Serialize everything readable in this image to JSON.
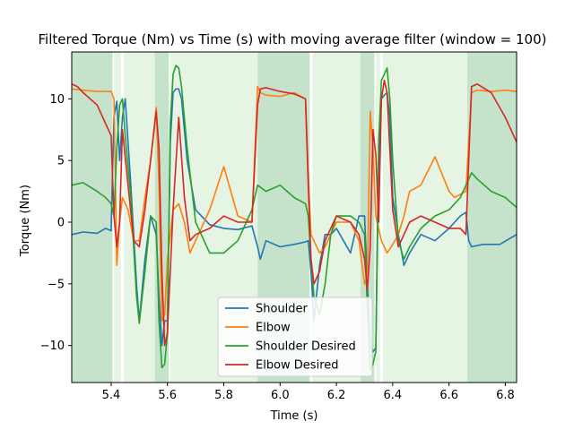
{
  "chart_data": {
    "type": "line",
    "title": "Filtered Torque (Nm) vs Time (s) with moving average filter (window = 100)",
    "xlabel": "Time (s)",
    "ylabel": "Torque (Nm)",
    "xlim": [
      5.26,
      6.84
    ],
    "ylim": [
      -13.0,
      13.8
    ],
    "xticks": [
      5.4,
      5.6,
      5.8,
      6.0,
      6.2,
      6.4,
      6.6,
      6.8
    ],
    "yticks": [
      -10,
      -5,
      0,
      5,
      10
    ],
    "legend_position": "lower center",
    "shaded_regions": [
      {
        "start": 5.26,
        "end": 5.405,
        "shade": "dark"
      },
      {
        "start": 5.41,
        "end": 5.435,
        "shade": "light"
      },
      {
        "start": 5.445,
        "end": 5.555,
        "shade": "light"
      },
      {
        "start": 5.555,
        "end": 5.605,
        "shade": "dark"
      },
      {
        "start": 5.61,
        "end": 5.92,
        "shade": "light"
      },
      {
        "start": 5.92,
        "end": 6.105,
        "shade": "dark"
      },
      {
        "start": 6.115,
        "end": 6.285,
        "shade": "light"
      },
      {
        "start": 6.285,
        "end": 6.335,
        "shade": "dark"
      },
      {
        "start": 6.34,
        "end": 6.355,
        "shade": "light"
      },
      {
        "start": 6.365,
        "end": 6.665,
        "shade": "light"
      },
      {
        "start": 6.665,
        "end": 6.84,
        "shade": "dark"
      }
    ],
    "series": [
      {
        "name": "Shoulder",
        "color": "#1f77b4",
        "x": [
          5.26,
          5.3,
          5.35,
          5.38,
          5.4,
          5.41,
          5.42,
          5.43,
          5.44,
          5.45,
          5.47,
          5.49,
          5.5,
          5.52,
          5.54,
          5.56,
          5.57,
          5.58,
          5.59,
          5.6,
          5.61,
          5.62,
          5.63,
          5.64,
          5.65,
          5.67,
          5.7,
          5.75,
          5.8,
          5.85,
          5.9,
          5.92,
          5.93,
          5.95,
          6.0,
          6.05,
          6.09,
          6.1,
          6.11,
          6.12,
          6.14,
          6.16,
          6.18,
          6.2,
          6.25,
          6.28,
          6.3,
          6.31,
          6.32,
          6.33,
          6.34,
          6.35,
          6.36,
          6.37,
          6.38,
          6.39,
          6.4,
          6.42,
          6.44,
          6.46,
          6.5,
          6.55,
          6.6,
          6.64,
          6.66,
          6.67,
          6.68,
          6.72,
          6.78,
          6.84
        ],
        "y": [
          -1.0,
          -0.8,
          -0.9,
          -0.5,
          -0.7,
          8.5,
          9.8,
          5.0,
          8.5,
          10.0,
          3.0,
          -5.0,
          -8.0,
          -3.0,
          0.5,
          -1.0,
          -6.0,
          -10.0,
          -8.0,
          -8.0,
          6.5,
          10.5,
          10.8,
          10.8,
          10.0,
          5.0,
          1.0,
          -0.2,
          -0.5,
          -0.6,
          -0.3,
          -2.0,
          -3.0,
          -1.5,
          -2.0,
          -1.8,
          -1.6,
          -1.5,
          -4.0,
          -8.0,
          -3.5,
          -1.0,
          -1.0,
          -0.5,
          -2.5,
          0.5,
          0.5,
          -5.0,
          -10.0,
          -10.5,
          -10.2,
          5.0,
          10.0,
          10.3,
          10.5,
          8.5,
          2.0,
          -1.0,
          -3.5,
          -2.5,
          -1.0,
          -1.5,
          -0.5,
          0.5,
          0.8,
          -1.5,
          -2.0,
          -1.8,
          -1.8,
          -1.0
        ]
      },
      {
        "name": "Elbow",
        "color": "#ff7f0e",
        "x": [
          5.26,
          5.3,
          5.35,
          5.4,
          5.41,
          5.42,
          5.43,
          5.44,
          5.46,
          5.48,
          5.5,
          5.52,
          5.54,
          5.56,
          5.57,
          5.58,
          5.59,
          5.6,
          5.62,
          5.64,
          5.66,
          5.68,
          5.7,
          5.75,
          5.8,
          5.85,
          5.9,
          5.92,
          5.93,
          5.95,
          6.0,
          6.05,
          6.09,
          6.1,
          6.11,
          6.12,
          6.14,
          6.16,
          6.2,
          6.25,
          6.28,
          6.3,
          6.31,
          6.32,
          6.33,
          6.34,
          6.36,
          6.38,
          6.4,
          6.42,
          6.44,
          6.46,
          6.5,
          6.55,
          6.6,
          6.62,
          6.66,
          6.68,
          6.7,
          6.75,
          6.8,
          6.84
        ],
        "y": [
          10.8,
          10.7,
          10.6,
          10.6,
          10.0,
          -3.5,
          0.0,
          2.0,
          1.0,
          -1.5,
          -1.5,
          2.0,
          5.0,
          9.3,
          3.0,
          -8.0,
          -7.5,
          -3.0,
          1.0,
          1.5,
          0.0,
          -2.5,
          -1.5,
          1.0,
          4.5,
          0.5,
          0.0,
          11.0,
          10.5,
          10.3,
          10.2,
          10.5,
          10.0,
          4.0,
          -1.0,
          -1.5,
          -2.5,
          -2.0,
          0.0,
          0.0,
          -1.5,
          -5.0,
          -4.5,
          9.0,
          6.0,
          0.5,
          -1.5,
          -2.5,
          -1.8,
          -1.0,
          0.5,
          2.5,
          3.0,
          5.3,
          2.5,
          2.0,
          2.5,
          10.5,
          10.7,
          10.6,
          10.7,
          10.6
        ]
      },
      {
        "name": "Shoulder Desired",
        "color": "#2ca02c",
        "x": [
          5.26,
          5.3,
          5.35,
          5.38,
          5.4,
          5.41,
          5.42,
          5.43,
          5.44,
          5.45,
          5.47,
          5.49,
          5.5,
          5.52,
          5.54,
          5.56,
          5.57,
          5.58,
          5.59,
          5.6,
          5.61,
          5.62,
          5.63,
          5.64,
          5.65,
          5.67,
          5.7,
          5.75,
          5.8,
          5.85,
          5.9,
          5.92,
          5.95,
          6.0,
          6.05,
          6.09,
          6.1,
          6.11,
          6.12,
          6.14,
          6.16,
          6.18,
          6.2,
          6.25,
          6.28,
          6.3,
          6.31,
          6.32,
          6.33,
          6.34,
          6.35,
          6.36,
          6.37,
          6.38,
          6.39,
          6.4,
          6.42,
          6.44,
          6.46,
          6.5,
          6.55,
          6.6,
          6.64,
          6.66,
          6.68,
          6.7,
          6.75,
          6.8,
          6.84
        ],
        "y": [
          3.0,
          3.2,
          2.5,
          2.0,
          1.5,
          0.5,
          6.0,
          9.5,
          10.0,
          7.0,
          2.0,
          -6.0,
          -8.2,
          -4.0,
          0.5,
          0.0,
          -8.0,
          -11.8,
          -11.5,
          -9.0,
          8.0,
          12.0,
          12.7,
          12.5,
          11.0,
          6.0,
          0.0,
          -2.5,
          -2.5,
          -1.5,
          1.0,
          3.0,
          2.5,
          3.0,
          2.0,
          1.5,
          0.5,
          -3.0,
          -6.0,
          -7.5,
          -5.0,
          -1.0,
          0.5,
          0.5,
          0.0,
          -1.0,
          -7.0,
          -12.0,
          -11.5,
          -10.5,
          6.5,
          11.5,
          12.0,
          12.5,
          10.0,
          5.0,
          -1.5,
          -3.0,
          -2.0,
          -0.5,
          0.5,
          1.0,
          2.0,
          3.0,
          4.0,
          3.5,
          2.5,
          2.0,
          1.2
        ]
      },
      {
        "name": "Elbow Desired",
        "color": "#d62728",
        "x": [
          5.26,
          5.28,
          5.3,
          5.35,
          5.38,
          5.4,
          5.41,
          5.42,
          5.43,
          5.44,
          5.46,
          5.48,
          5.5,
          5.52,
          5.54,
          5.56,
          5.57,
          5.58,
          5.59,
          5.6,
          5.62,
          5.64,
          5.66,
          5.68,
          5.7,
          5.75,
          5.8,
          5.85,
          5.9,
          5.92,
          5.93,
          5.95,
          6.0,
          6.05,
          6.09,
          6.1,
          6.11,
          6.12,
          6.14,
          6.16,
          6.2,
          6.25,
          6.28,
          6.3,
          6.31,
          6.32,
          6.33,
          6.34,
          6.35,
          6.36,
          6.37,
          6.38,
          6.4,
          6.42,
          6.44,
          6.46,
          6.5,
          6.55,
          6.6,
          6.64,
          6.66,
          6.67,
          6.68,
          6.7,
          6.75,
          6.8,
          6.84
        ],
        "y": [
          11.2,
          11.0,
          10.5,
          9.5,
          8.0,
          7.0,
          0.5,
          -2.0,
          0.0,
          7.5,
          3.0,
          -1.5,
          -2.0,
          1.0,
          5.0,
          9.0,
          6.0,
          -4.0,
          -10.0,
          -9.0,
          1.0,
          8.5,
          2.0,
          -1.5,
          -1.0,
          -0.5,
          0.5,
          0.0,
          0.0,
          9.5,
          10.8,
          10.9,
          10.6,
          10.4,
          10.0,
          3.0,
          -3.0,
          -5.0,
          -4.0,
          -1.5,
          0.5,
          0.0,
          -1.0,
          -3.0,
          -5.5,
          -2.0,
          7.5,
          5.5,
          0.0,
          10.0,
          11.5,
          10.5,
          1.0,
          -2.0,
          -1.0,
          0.0,
          0.5,
          0.0,
          -0.5,
          -0.5,
          -1.0,
          5.0,
          11.0,
          11.2,
          10.5,
          8.5,
          6.5
        ]
      }
    ]
  }
}
